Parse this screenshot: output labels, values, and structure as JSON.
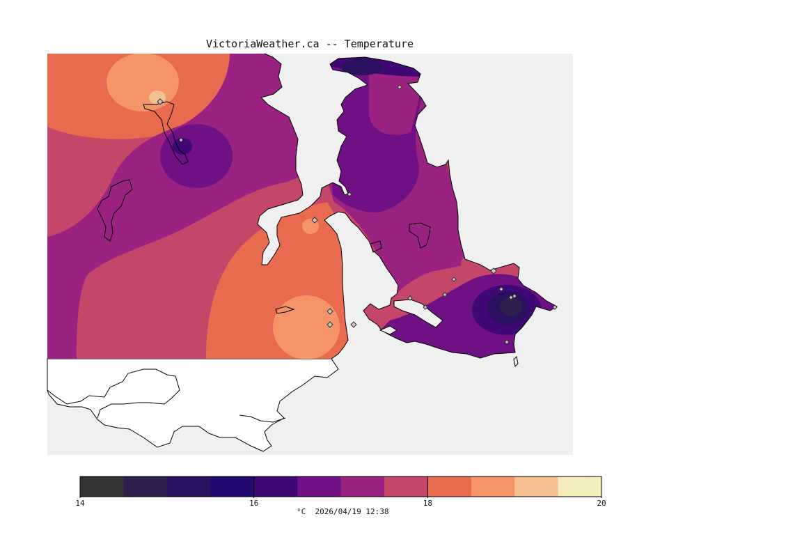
{
  "title": "VictoriaWeather.ca -- Temperature",
  "units_timestamp": "°C  2026/04/19 12:38",
  "legend": {
    "min": 14,
    "max": 20,
    "ticks": [
      "14",
      "16",
      "18",
      "20"
    ],
    "colors": [
      "#333333",
      "#2e1f4e",
      "#2c1060",
      "#230a70",
      "#3f0875",
      "#6f1185",
      "#9a2381",
      "#c44669",
      "#e86b50",
      "#f49468",
      "#f6c190",
      "#f5edbb"
    ]
  },
  "colors": {
    "land_fill": "#f0f0f0",
    "water_fill": "#ffffff",
    "coast_line": "#000000",
    "station_marker": "#c8c8c8"
  }
}
